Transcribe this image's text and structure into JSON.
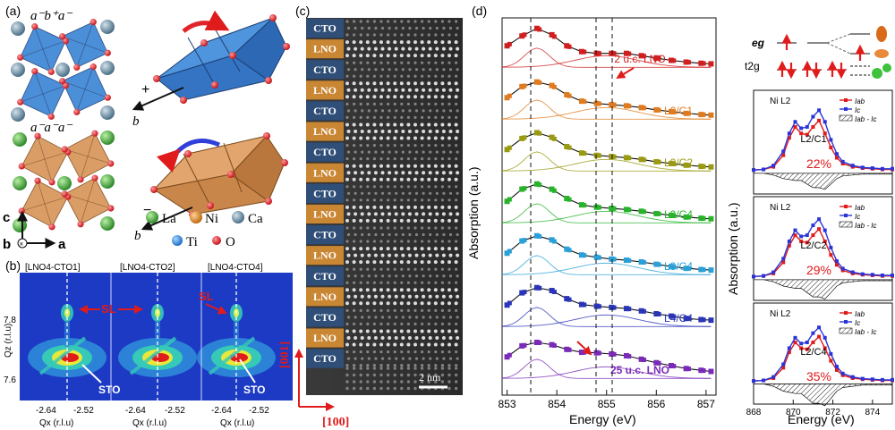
{
  "panel_a": {
    "label": "(a)",
    "tilt_top": "a⁻b⁺a⁻",
    "tilt_bottom": "a⁻a⁻a⁻",
    "plus": "+",
    "minus": "−",
    "b_axis": "b",
    "c_axis": "c",
    "a_axis": "a",
    "b_out": "b",
    "legend": [
      "La",
      "Ni",
      "Ca",
      "Ti",
      "O"
    ],
    "colors": {
      "La": "#4cae3c",
      "Ni": "#e08b1e",
      "Ca": "#6e93a8",
      "Ti": "#2f8fe0",
      "O": "#e0262b",
      "octa_blue": "#3c86d6",
      "octa_orange": "#d8955a"
    }
  },
  "panel_b": {
    "label": "(b)",
    "titles": [
      "[LNO4-CTO1]",
      "[LNO4-CTO2]",
      "[LNO4-CTO4]"
    ],
    "sl": "SL",
    "sto": "STO",
    "y_ticks": [
      "7.8",
      "7.6"
    ],
    "x_ticks": [
      "-2.64",
      "-2.52"
    ],
    "ylabel": "Qz (r.l.u)",
    "xlabel": "Qx (r.l.u)"
  },
  "panel_c": {
    "label": "(c)",
    "layers": [
      "CTO",
      "LNO",
      "CTO",
      "LNO",
      "CTO",
      "LNO",
      "CTO",
      "LNO",
      "CTO",
      "LNO",
      "CTO",
      "LNO",
      "CTO",
      "LNO",
      "CTO",
      "LNO",
      "CTO"
    ],
    "scale": "2 nm",
    "axis_up": "[001]",
    "axis_right": "[100]",
    "colors": {
      "CTO": "#2f4e78",
      "LNO": "#c98633"
    }
  },
  "panel_d": {
    "label": "(d)",
    "labels": [
      "2 u.c. LNO",
      "L2/C1",
      "L2/C2",
      "L2/C4",
      "L3/C4",
      "L4/C4",
      "25 u.c. LNO"
    ],
    "ylabel": "Absorption (a.u.)",
    "xlabel": "Energy (eV)",
    "x_ticks": [
      "853",
      "854",
      "855",
      "856",
      "857"
    ],
    "colors": [
      "#d01f1f",
      "#e07a1f",
      "#9a9a12",
      "#27b32a",
      "#2aa0d8",
      "#2a35b8",
      "#7a2ab8"
    ]
  },
  "panel_e": {
    "eg": "eg",
    "t2g": "t2g",
    "ni_l2": "Ni L2",
    "leg_ab": "Iab",
    "leg_c": "Ic",
    "leg_diff": "Iab - Ic",
    "samples": [
      "L2/C1",
      "L2/C2",
      "L2/C4"
    ],
    "percents": [
      "22%",
      "29%",
      "35%"
    ],
    "ylabel": "Absorption (a.u.)",
    "xlabel": "Energy (eV)",
    "x_ticks": [
      "868",
      "870",
      "872",
      "874"
    ]
  },
  "chart_data": [
    {
      "type": "line",
      "xlabel": "Energy (eV)",
      "ylabel": "Absorption (a.u.)",
      "xlim": [
        852.9,
        857.2
      ],
      "series": [
        {
          "name": "2 u.c. LNO",
          "x": [
            853,
            853.3,
            853.6,
            853.9,
            854.2,
            854.5,
            854.8,
            855.1,
            855.4,
            855.7,
            856,
            856.3,
            856.6,
            856.9,
            857.1
          ],
          "values": [
            0.55,
            0.72,
            0.85,
            0.74,
            0.55,
            0.45,
            0.42,
            0.42,
            0.42,
            0.38,
            0.34,
            0.3,
            0.27,
            0.25,
            0.24
          ]
        },
        {
          "name": "L2/C1",
          "x": [
            853,
            853.3,
            853.6,
            853.9,
            854.2,
            854.5,
            854.8,
            855.1,
            855.4,
            855.7,
            856,
            856.3,
            856.6,
            856.9,
            857.1
          ],
          "values": [
            0.55,
            0.74,
            0.82,
            0.76,
            0.6,
            0.49,
            0.45,
            0.43,
            0.41,
            0.38,
            0.34,
            0.31,
            0.28,
            0.26,
            0.25
          ]
        },
        {
          "name": "L2/C2",
          "x": [
            853,
            853.3,
            853.6,
            853.9,
            854.2,
            854.5,
            854.8,
            855.1,
            855.4,
            855.7,
            856,
            856.3,
            856.6,
            856.9,
            857.1
          ],
          "values": [
            0.55,
            0.74,
            0.84,
            0.76,
            0.6,
            0.49,
            0.45,
            0.43,
            0.41,
            0.38,
            0.34,
            0.31,
            0.28,
            0.26,
            0.25
          ]
        },
        {
          "name": "L2/C4",
          "x": [
            853,
            853.3,
            853.6,
            853.9,
            854.2,
            854.5,
            854.8,
            855.1,
            855.4,
            855.7,
            856,
            856.3,
            856.6,
            856.9,
            857.1
          ],
          "values": [
            0.55,
            0.76,
            0.85,
            0.76,
            0.6,
            0.49,
            0.45,
            0.43,
            0.41,
            0.38,
            0.34,
            0.31,
            0.28,
            0.26,
            0.25
          ]
        },
        {
          "name": "L3/C4",
          "x": [
            853,
            853.3,
            853.6,
            853.9,
            854.2,
            854.5,
            854.8,
            855.1,
            855.4,
            855.7,
            856,
            856.3,
            856.6,
            856.9,
            857.1
          ],
          "values": [
            0.55,
            0.76,
            0.85,
            0.78,
            0.62,
            0.52,
            0.48,
            0.45,
            0.43,
            0.4,
            0.36,
            0.32,
            0.29,
            0.27,
            0.26
          ]
        },
        {
          "name": "L4/C4",
          "x": [
            853,
            853.3,
            853.6,
            853.9,
            854.2,
            854.5,
            854.8,
            855.1,
            855.4,
            855.7,
            856,
            856.3,
            856.6,
            856.9,
            857.1
          ],
          "values": [
            0.55,
            0.76,
            0.85,
            0.8,
            0.66,
            0.56,
            0.53,
            0.51,
            0.49,
            0.45,
            0.4,
            0.36,
            0.32,
            0.3,
            0.29
          ]
        },
        {
          "name": "25 u.c. LNO",
          "x": [
            853,
            853.3,
            853.6,
            853.9,
            854.2,
            854.5,
            854.8,
            855.1,
            855.4,
            855.7,
            856,
            856.3,
            856.6,
            856.9,
            857.1
          ],
          "values": [
            0.55,
            0.74,
            0.8,
            0.76,
            0.68,
            0.63,
            0.62,
            0.6,
            0.57,
            0.51,
            0.45,
            0.4,
            0.35,
            0.32,
            0.3
          ]
        }
      ]
    },
    {
      "type": "line",
      "xlabel": "Energy (eV)",
      "ylabel": "Absorption (a.u.)",
      "xlim": [
        868,
        875
      ],
      "series": [
        {
          "name": "Iab",
          "x": [
            868,
            868.5,
            869,
            869.5,
            869.8,
            870.1,
            870.4,
            870.7,
            871,
            871.3,
            871.6,
            871.9,
            872.2,
            872.5,
            873,
            873.5,
            874,
            874.5,
            875
          ],
          "values": [
            0.05,
            0.06,
            0.1,
            0.28,
            0.55,
            0.72,
            0.62,
            0.6,
            0.72,
            0.82,
            0.62,
            0.4,
            0.24,
            0.15,
            0.1,
            0.08,
            0.07,
            0.06,
            0.06
          ]
        },
        {
          "name": "Ic",
          "x": [
            868,
            868.5,
            869,
            869.5,
            869.8,
            870.1,
            870.4,
            870.7,
            871,
            871.3,
            871.6,
            871.9,
            872.2,
            872.5,
            873,
            873.5,
            874,
            874.5,
            875
          ],
          "values": [
            0.05,
            0.06,
            0.12,
            0.34,
            0.62,
            0.8,
            0.7,
            0.72,
            0.88,
            0.98,
            0.8,
            0.52,
            0.3,
            0.18,
            0.12,
            0.09,
            0.08,
            0.07,
            0.07
          ]
        }
      ]
    }
  ]
}
